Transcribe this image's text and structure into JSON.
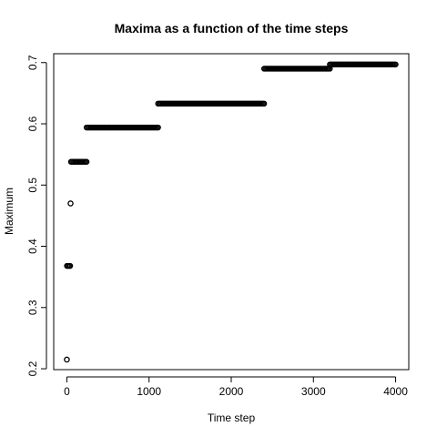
{
  "chart_data": {
    "type": "scatter",
    "title": "Maxima as a function of the time steps",
    "xlabel": "Time step",
    "ylabel": "Maximum",
    "xlim": [
      -160,
      4160
    ],
    "ylim": [
      0.1986,
      0.7145
    ],
    "xticks": [
      0,
      1000,
      2000,
      3000,
      4000
    ],
    "yticks": [
      0.2,
      0.3,
      0.4,
      0.5,
      0.6,
      0.7
    ],
    "grid": false,
    "legend": "none",
    "marker": "open-circle",
    "color": "#000000",
    "segments": [
      {
        "x_start": 0,
        "x_end": 0,
        "y": 0.215
      },
      {
        "x_start": 1,
        "x_end": 40,
        "y": 0.368
      },
      {
        "x_start": 45,
        "x_end": 45,
        "y": 0.47
      },
      {
        "x_start": 50,
        "x_end": 240,
        "y": 0.538
      },
      {
        "x_start": 240,
        "x_end": 1110,
        "y": 0.594
      },
      {
        "x_start": 1110,
        "x_end": 2400,
        "y": 0.633
      },
      {
        "x_start": 2400,
        "x_end": 3200,
        "y": 0.69
      },
      {
        "x_start": 3200,
        "x_end": 4000,
        "y": 0.697
      }
    ]
  }
}
